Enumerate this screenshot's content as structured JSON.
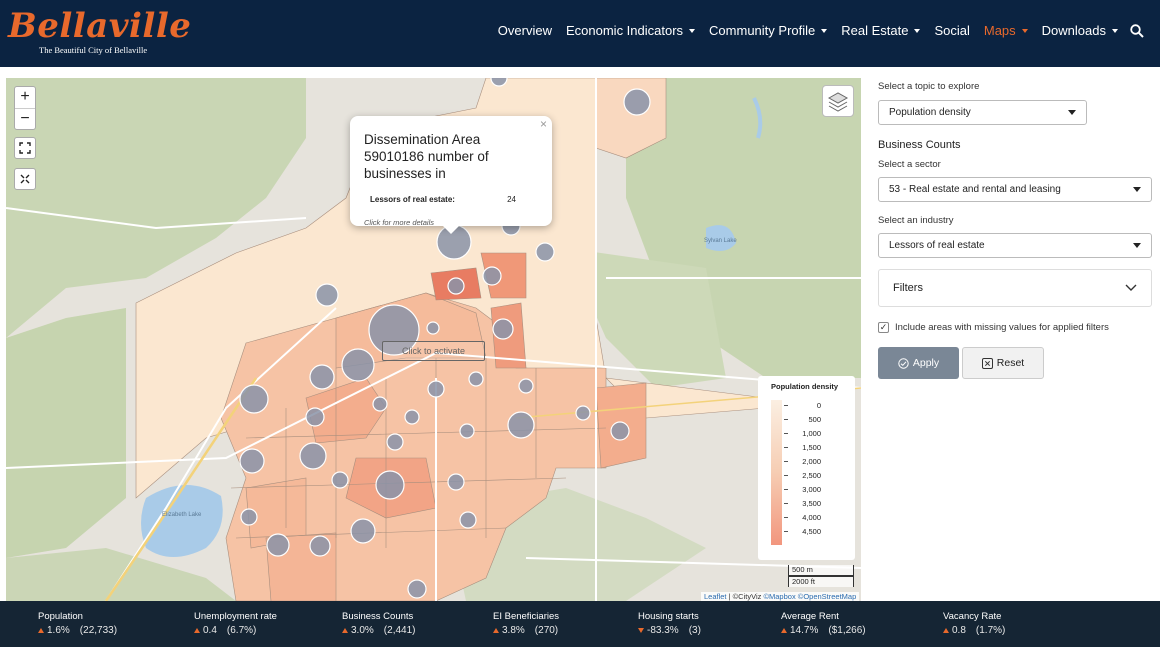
{
  "header": {
    "logo_title": "Bellaville",
    "logo_subtitle": "The Beautiful City of Bellaville",
    "nav": [
      {
        "label": "Overview",
        "dropdown": false,
        "active": false
      },
      {
        "label": "Economic Indicators",
        "dropdown": true,
        "active": false
      },
      {
        "label": "Community Profile",
        "dropdown": true,
        "active": false
      },
      {
        "label": "Real Estate",
        "dropdown": true,
        "active": false
      },
      {
        "label": "Social",
        "dropdown": false,
        "active": false
      },
      {
        "label": "Maps",
        "dropdown": true,
        "active": true
      },
      {
        "label": "Downloads",
        "dropdown": true,
        "active": false
      }
    ],
    "search_icon": "search-icon"
  },
  "map": {
    "zoom_in": "+",
    "zoom_out": "−",
    "fullscreen_icon": "fullscreen-icon",
    "reset_icon": "collapse-icon",
    "layers_icon": "layers-icon",
    "popup": {
      "title": "Dissemination Area 59010186 number of businesses in",
      "row_label": "Lessors of real estate:",
      "row_value": "24",
      "link": "Click for more details",
      "close": "×"
    },
    "activate_overlay": "Click to activate",
    "legend": {
      "title": "Population density",
      "values": [
        "0",
        "500",
        "1,000",
        "1,500",
        "2,000",
        "2,500",
        "3,000",
        "3,500",
        "4,000",
        "4,500"
      ]
    },
    "scale": {
      "metric": "500 m",
      "imperial": "2000 ft"
    },
    "attribution": {
      "leaflet": "Leaflet",
      "sep": " | ",
      "cityviz": "©CityViz",
      "mapbox": "©Mapbox",
      "osm": "©OpenStreetMap"
    },
    "place_labels": [
      "Sylvan Lake",
      "Elizabeth Lake"
    ],
    "colors": {
      "low": "#fbefe2",
      "mid": "#f6cdb3",
      "high": "#f2967e",
      "bubble": "#8a93a8"
    }
  },
  "panel": {
    "topic_label": "Select a topic to explore",
    "topic_value": "Population density",
    "section_title": "Business Counts",
    "sector_label": "Select a sector",
    "sector_value": "53 - Real estate and rental and leasing",
    "industry_label": "Select an industry",
    "industry_value": "Lessors of real estate",
    "filters_label": "Filters",
    "missing_values_text": "Include areas with missing values for applied filters",
    "missing_values_checked": true,
    "apply_label": "Apply",
    "reset_label": "Reset"
  },
  "stats": [
    {
      "label": "Population",
      "direction": "up",
      "pct": "1.6%",
      "abs": "(22,733)"
    },
    {
      "label": "Unemployment rate",
      "direction": "up",
      "pct": "0.4",
      "abs": "(6.7%)"
    },
    {
      "label": "Business Counts",
      "direction": "up",
      "pct": "3.0%",
      "abs": "(2,441)"
    },
    {
      "label": "EI Beneficiaries",
      "direction": "up",
      "pct": "3.8%",
      "abs": "(270)"
    },
    {
      "label": "Housing starts",
      "direction": "down",
      "pct": "-83.3%",
      "abs": "(3)"
    },
    {
      "label": "Average Rent",
      "direction": "up",
      "pct": "14.7%",
      "abs": "($1,266)"
    },
    {
      "label": "Vacancy Rate",
      "direction": "up",
      "pct": "0.8",
      "abs": "(1.7%)"
    }
  ],
  "theme": {
    "navy": "#0b2341",
    "orange": "#e8692c",
    "footer": "#152534"
  }
}
